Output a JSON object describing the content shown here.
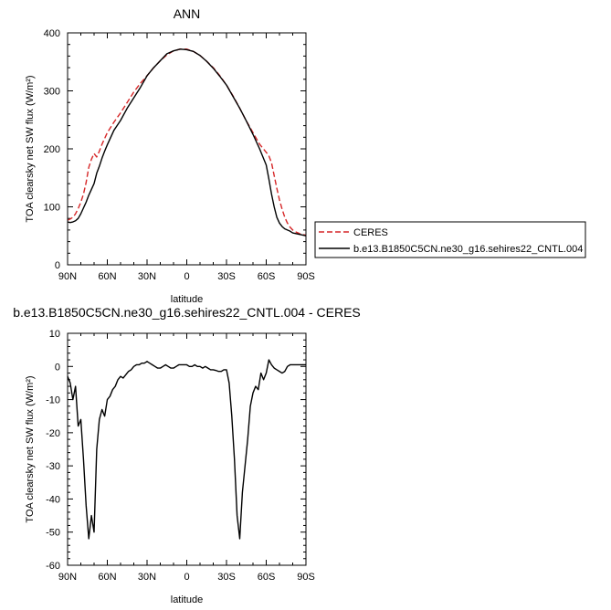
{
  "chart_data": [
    {
      "type": "line",
      "title": "ANN",
      "xlabel": "latitude",
      "ylabel": "TOA clearsky net SW flux (W/m²)",
      "xlim": [
        90,
        -90
      ],
      "ylim": [
        0,
        400
      ],
      "xticks": [
        90,
        60,
        30,
        0,
        -30,
        -60,
        -90
      ],
      "xtick_labels": [
        "90N",
        "60N",
        "30N",
        "0",
        "30S",
        "60S",
        "90S"
      ],
      "yticks": [
        0,
        100,
        200,
        300,
        400
      ],
      "ytick_labels": [
        "0",
        "100",
        "200",
        "300",
        "400"
      ],
      "legend": {
        "placement": "right"
      },
      "series": [
        {
          "name": "CERES",
          "color": "#d62728",
          "dash": "dashed",
          "x": [
            90,
            88,
            86,
            84,
            82,
            80,
            78,
            76,
            74,
            72,
            70,
            68,
            66,
            64,
            62,
            60,
            55,
            50,
            45,
            40,
            35,
            30,
            25,
            20,
            15,
            10,
            5,
            0,
            -5,
            -10,
            -15,
            -20,
            -25,
            -30,
            -35,
            -40,
            -45,
            -50,
            -55,
            -60,
            -62,
            -64,
            -66,
            -68,
            -70,
            -72,
            -74,
            -76,
            -78,
            -80,
            -82,
            -84,
            -86,
            -88,
            -90
          ],
          "y": [
            77,
            79,
            82,
            88,
            97,
            108,
            122,
            142,
            168,
            182,
            192,
            186,
            196,
            208,
            218,
            228,
            246,
            262,
            280,
            298,
            313,
            326,
            340,
            352,
            362,
            369,
            372,
            372,
            368,
            361,
            351,
            340,
            326,
            310,
            291,
            270,
            248,
            228,
            208,
            194,
            188,
            176,
            154,
            132,
            112,
            96,
            82,
            72,
            65,
            60,
            57,
            55,
            53,
            52,
            51
          ]
        },
        {
          "name": "b.e13.B1850C5CN.ne30_g16.sehires22_CNTL.004",
          "color": "#000000",
          "dash": "solid",
          "x": [
            90,
            88,
            86,
            84,
            82,
            80,
            78,
            76,
            74,
            72,
            70,
            68,
            66,
            64,
            62,
            60,
            55,
            50,
            45,
            40,
            35,
            30,
            25,
            20,
            15,
            10,
            5,
            0,
            -5,
            -10,
            -15,
            -20,
            -25,
            -30,
            -35,
            -40,
            -45,
            -50,
            -55,
            -60,
            -62,
            -64,
            -66,
            -68,
            -70,
            -72,
            -74,
            -76,
            -78,
            -80,
            -82,
            -84,
            -86,
            -88,
            -90
          ],
          "y": [
            74,
            73,
            74,
            76,
            80,
            88,
            98,
            108,
            120,
            130,
            140,
            158,
            170,
            184,
            196,
            207,
            232,
            249,
            270,
            288,
            306,
            326,
            340,
            352,
            364,
            369,
            372,
            371,
            368,
            361,
            351,
            339,
            325,
            310,
            290,
            270,
            248,
            225,
            200,
            172,
            148,
            122,
            100,
            82,
            72,
            66,
            62,
            60,
            58,
            55,
            54,
            53,
            52,
            51,
            50
          ]
        }
      ]
    },
    {
      "type": "line",
      "title": "b.e13.B1850C5CN.ne30_g16.sehires22_CNTL.004 - CERES",
      "xlabel": "latitude",
      "ylabel": "TOA clearsky net SW flux (W/m²)",
      "xlim": [
        90,
        -90
      ],
      "ylim": [
        -60,
        10
      ],
      "xticks": [
        90,
        60,
        30,
        0,
        -30,
        -60,
        -90
      ],
      "xtick_labels": [
        "90N",
        "60N",
        "30N",
        "0",
        "30S",
        "60S",
        "90S"
      ],
      "yticks": [
        -60,
        -50,
        -40,
        -30,
        -20,
        -10,
        0,
        10
      ],
      "ytick_labels": [
        "-60",
        "-50",
        "-40",
        "-30",
        "-20",
        "-10",
        "0",
        "10"
      ],
      "series": [
        {
          "name": "",
          "color": "#000000",
          "dash": "solid",
          "x": [
            90,
            88,
            86,
            84,
            82,
            80,
            78,
            76,
            74,
            72,
            70,
            68,
            66,
            64,
            62,
            60,
            58,
            56,
            54,
            52,
            50,
            48,
            46,
            44,
            42,
            40,
            38,
            36,
            34,
            32,
            30,
            28,
            26,
            24,
            22,
            20,
            18,
            16,
            14,
            12,
            10,
            8,
            6,
            4,
            2,
            0,
            -2,
            -4,
            -6,
            -8,
            -10,
            -12,
            -14,
            -16,
            -18,
            -20,
            -22,
            -24,
            -26,
            -28,
            -30,
            -32,
            -34,
            -36,
            -38,
            -40,
            -42,
            -44,
            -46,
            -48,
            -50,
            -52,
            -54,
            -56,
            -58,
            -60,
            -62,
            -64,
            -66,
            -68,
            -70,
            -72,
            -74,
            -76,
            -78,
            -80,
            -82,
            -84,
            -86,
            -88,
            -90
          ],
          "y": [
            -3,
            -5,
            -10,
            -6,
            -18,
            -16,
            -28,
            -42,
            -52,
            -45,
            -50,
            -25,
            -16,
            -13,
            -15,
            -10,
            -9,
            -7,
            -6,
            -4,
            -3,
            -3.5,
            -2.5,
            -1.5,
            -1,
            0,
            0.5,
            0.5,
            1,
            1,
            1.5,
            1,
            0.5,
            0,
            -0.5,
            -0.5,
            0,
            0.5,
            0,
            -0.5,
            -0.5,
            0,
            0.5,
            0.5,
            0.5,
            0.5,
            0,
            0,
            0.5,
            0,
            0,
            -0.5,
            0,
            -0.5,
            -1,
            -1,
            -1.2,
            -1.5,
            -1.5,
            -1,
            -1,
            -5,
            -15,
            -28,
            -45,
            -52,
            -38,
            -30,
            -22,
            -12,
            -8,
            -6,
            -7,
            -2,
            -4,
            -2,
            2,
            0.5,
            -0.5,
            -1,
            -1.5,
            -2,
            -1.5,
            0,
            0.5,
            0.5,
            0.5,
            0.5,
            0.5,
            0.5,
            0.5
          ]
        }
      ]
    }
  ]
}
